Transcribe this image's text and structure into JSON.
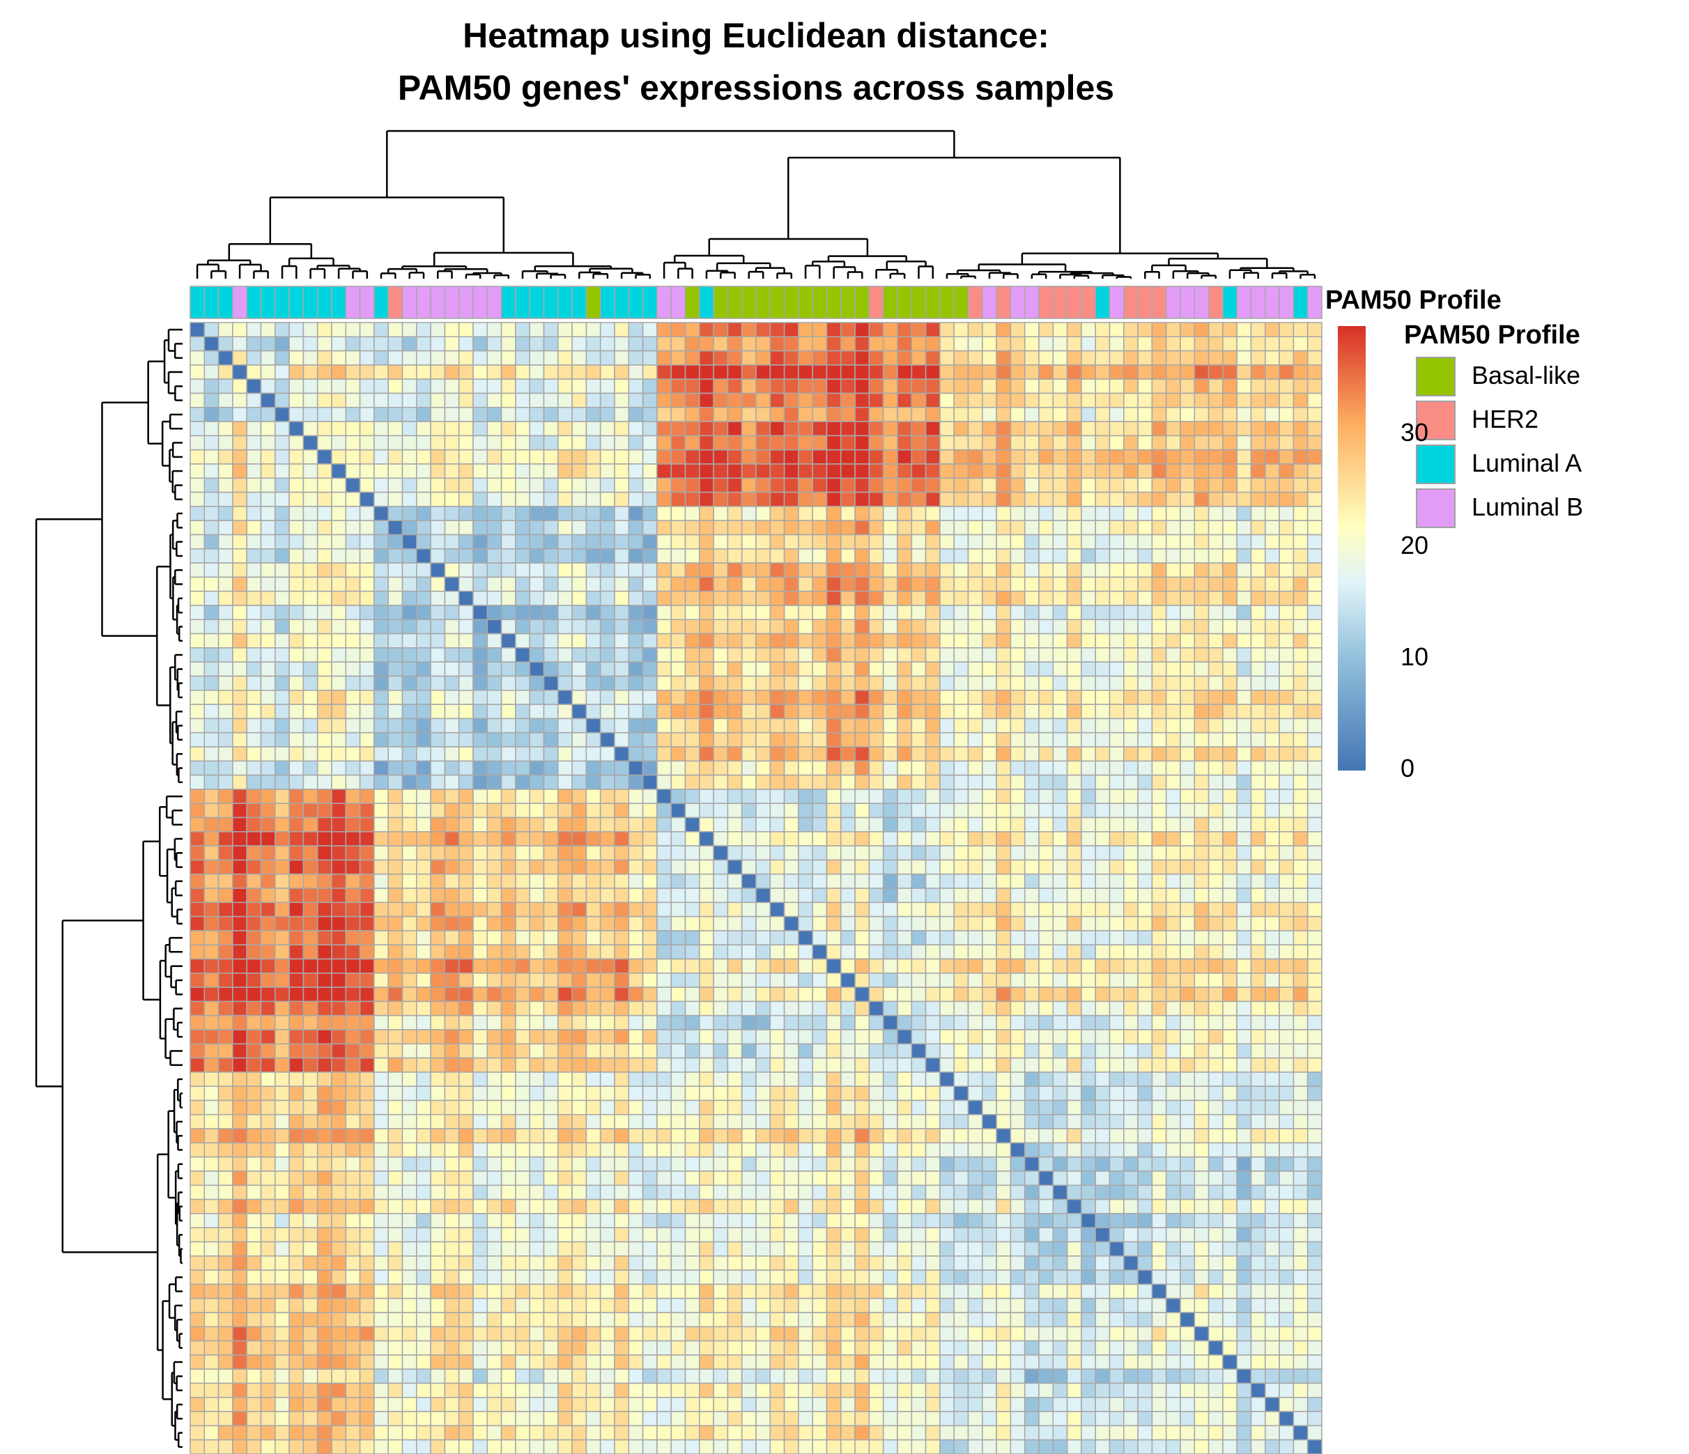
{
  "chart_data": {
    "type": "heatmap",
    "title": "Heatmap using Euclidean distance:",
    "subtitle": "PAM50 genes' expressions across samples",
    "n_samples": 80,
    "annotation_title": "PAM50 Profile",
    "legend_title": "PAM50 Profile",
    "categories": [
      "Basal-like",
      "HER2",
      "Luminal A",
      "Luminal B"
    ],
    "category_colors": {
      "Basal-like": "#95c400",
      "HER2": "#f98d86",
      "Luminal A": "#00d4de",
      "Luminal B": "#e29cf8"
    },
    "sample_annotation": [
      "Luminal A",
      "Luminal A",
      "Luminal A",
      "Luminal B",
      "Luminal A",
      "Luminal A",
      "Luminal A",
      "Luminal A",
      "Luminal A",
      "Luminal A",
      "Luminal A",
      "Luminal B",
      "Luminal B",
      "Luminal A",
      "HER2",
      "Luminal B",
      "Luminal B",
      "Luminal B",
      "Luminal B",
      "Luminal B",
      "Luminal B",
      "Luminal B",
      "Luminal A",
      "Luminal A",
      "Luminal A",
      "Luminal A",
      "Luminal A",
      "Luminal A",
      "Basal-like",
      "Luminal A",
      "Luminal A",
      "Luminal A",
      "Luminal A",
      "Luminal B",
      "Luminal B",
      "Basal-like",
      "Luminal A",
      "Basal-like",
      "Basal-like",
      "Basal-like",
      "Basal-like",
      "Basal-like",
      "Basal-like",
      "Basal-like",
      "Basal-like",
      "Basal-like",
      "Basal-like",
      "Basal-like",
      "HER2",
      "Basal-like",
      "Basal-like",
      "Basal-like",
      "Basal-like",
      "Basal-like",
      "Basal-like",
      "HER2",
      "Luminal B",
      "HER2",
      "Luminal B",
      "Luminal B",
      "HER2",
      "HER2",
      "HER2",
      "HER2",
      "Luminal A",
      "Luminal B",
      "HER2",
      "HER2",
      "HER2",
      "Luminal B",
      "Luminal B",
      "Luminal B",
      "HER2",
      "Luminal A",
      "Luminal B",
      "Luminal B",
      "Luminal B",
      "Luminal B",
      "Luminal A",
      "Luminal B"
    ],
    "color_scale": {
      "min": 0,
      "max": 38,
      "ticks": [
        0,
        10,
        20,
        30
      ],
      "colors": [
        "#4575b4",
        "#e0f3f8",
        "#ffffbf",
        "#fdae61",
        "#d73027"
      ]
    },
    "dendrogram": "hierarchical clustering of samples on rows and columns",
    "blocks": [
      {
        "rows": [
          0,
          13
        ],
        "cols": [
          0,
          13
        ],
        "distance": 14
      },
      {
        "rows": [
          0,
          13
        ],
        "cols": [
          13,
          33
        ],
        "distance": 16
      },
      {
        "rows": [
          0,
          13
        ],
        "cols": [
          33,
          53
        ],
        "distance": 31
      },
      {
        "rows": [
          0,
          13
        ],
        "cols": [
          53,
          80
        ],
        "distance": 24
      },
      {
        "rows": [
          13,
          33
        ],
        "cols": [
          13,
          33
        ],
        "distance": 13
      },
      {
        "rows": [
          13,
          33
        ],
        "cols": [
          33,
          53
        ],
        "distance": 25
      },
      {
        "rows": [
          13,
          33
        ],
        "cols": [
          53,
          80
        ],
        "distance": 21
      },
      {
        "rows": [
          33,
          53
        ],
        "cols": [
          33,
          53
        ],
        "distance": 15
      },
      {
        "rows": [
          33,
          53
        ],
        "cols": [
          53,
          80
        ],
        "distance": 20
      },
      {
        "rows": [
          53,
          80
        ],
        "cols": [
          53,
          80
        ],
        "distance": 17
      }
    ]
  }
}
